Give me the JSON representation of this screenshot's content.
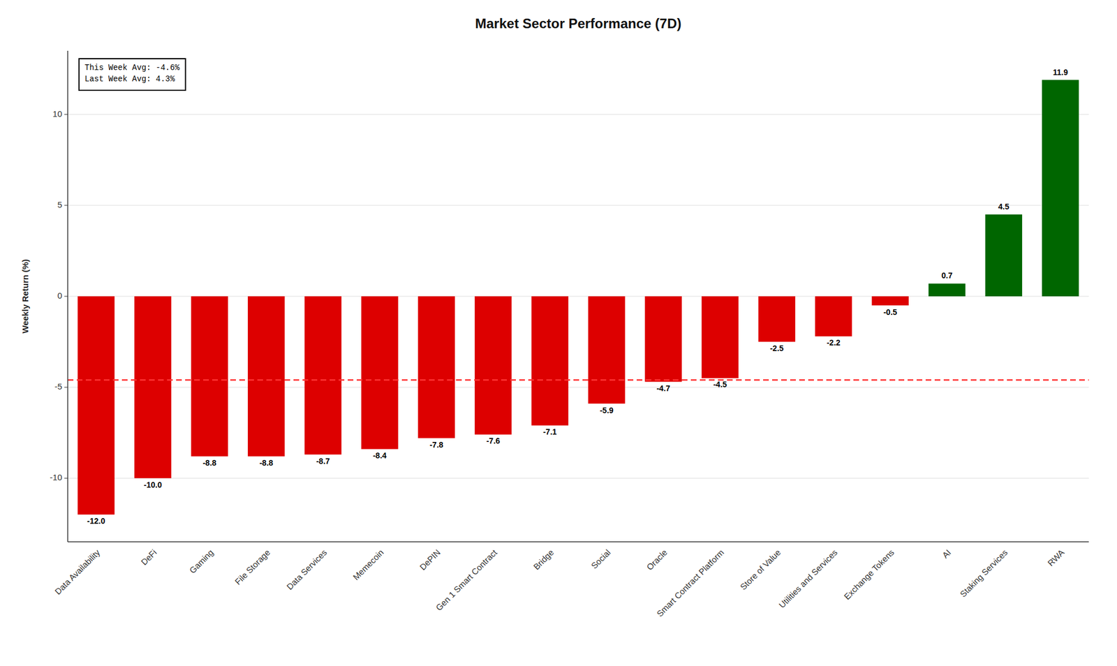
{
  "chart_data": {
    "type": "bar",
    "title": "Market Sector Performance (7D)",
    "ylabel": "Weekly Return (%)",
    "categories": [
      "Data Availability",
      "DeFi",
      "Gaming",
      "File Storage",
      "Data Services",
      "Memecoin",
      "DePIN",
      "Gen 1 Smart Contract",
      "Bridge",
      "Social",
      "Oracle",
      "Smart Contract Platform",
      "Store of Value",
      "Utilities and Services",
      "Exchange Tokens",
      "AI",
      "Staking Services",
      "RWA"
    ],
    "values": [
      -12.0,
      -10.0,
      -8.8,
      -8.8,
      -8.7,
      -8.4,
      -7.8,
      -7.6,
      -7.1,
      -5.9,
      -4.7,
      -4.5,
      -2.5,
      -2.2,
      -0.5,
      0.7,
      4.5,
      11.9
    ],
    "value_labels": [
      "-12.0",
      "-10.0",
      "-8.8",
      "-8.8",
      "-8.7",
      "-8.4",
      "-7.8",
      "-7.6",
      "-7.1",
      "-5.9",
      "-4.7",
      "-4.5",
      "-2.5",
      "-2.2",
      "-0.5",
      "0.7",
      "4.5",
      "11.9"
    ],
    "colors": [
      "#dd0000",
      "#dd0000",
      "#dd0000",
      "#dd0000",
      "#dd0000",
      "#dd0000",
      "#dd0000",
      "#dd0000",
      "#dd0000",
      "#dd0000",
      "#dd0000",
      "#dd0000",
      "#dd0000",
      "#dd0000",
      "#dd0000",
      "#006600",
      "#006600",
      "#006600"
    ],
    "reference_line": {
      "value": -4.6,
      "color": "#ff3333",
      "line_style": "dashed"
    },
    "annotations": [
      "This Week Avg: -4.6%",
      "Last Week Avg: 4.3%"
    ],
    "ylim": [
      -13.5,
      13.5
    ],
    "yticks": [
      -10,
      -5,
      0,
      5,
      10
    ],
    "grid": true,
    "data_labels": true
  }
}
